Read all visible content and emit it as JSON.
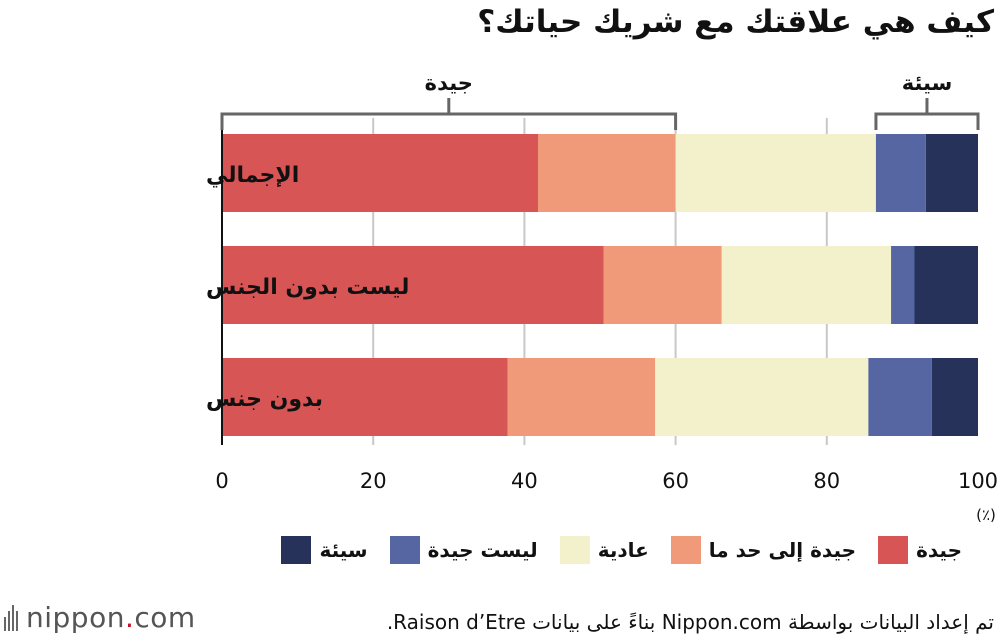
{
  "title": "كيف هي علاقتك مع شريك حياتك؟",
  "chart_data": {
    "type": "bar",
    "orientation": "horizontal",
    "stacked": true,
    "categories": [
      "الإجمالي",
      "ليست بدون الجنس",
      "بدون جنس"
    ],
    "series": [
      {
        "name": "جيدة",
        "color": "#d85555",
        "values": [
          41.8,
          50.5,
          37.8
        ]
      },
      {
        "name": "جيدة إلى حد ما",
        "color": "#f09a7a",
        "values": [
          18.2,
          15.6,
          19.5
        ]
      },
      {
        "name": "عادية",
        "color": "#f3f0cc",
        "values": [
          26.5,
          22.4,
          28.2
        ]
      },
      {
        "name": "ليست جيدة",
        "color": "#5566a3",
        "values": [
          6.6,
          3.1,
          8.4
        ]
      },
      {
        "name": "سيئة",
        "color": "#263259",
        "values": [
          6.9,
          8.4,
          6.1
        ]
      }
    ],
    "xlim": [
      0,
      100
    ],
    "xticks": [
      "0",
      "20",
      "40",
      "60",
      "80",
      "100"
    ],
    "unit_label": "(٪)",
    "grid": true,
    "brackets": [
      {
        "label": "جيدة",
        "from": 0,
        "to": 60
      },
      {
        "label": "سيئة",
        "from": 86.5,
        "to": 100
      }
    ]
  },
  "legend_order": [
    "سيئة",
    "ليست جيدة",
    "عادية",
    "جيدة إلى حد ما",
    "جيدة"
  ],
  "logo": {
    "prefix": "nippon",
    "dot": ".",
    "suffix": "com"
  },
  "source": "تم إعداد البيانات بواسطة Nippon.com بناءً على بيانات Raison d’Etre."
}
